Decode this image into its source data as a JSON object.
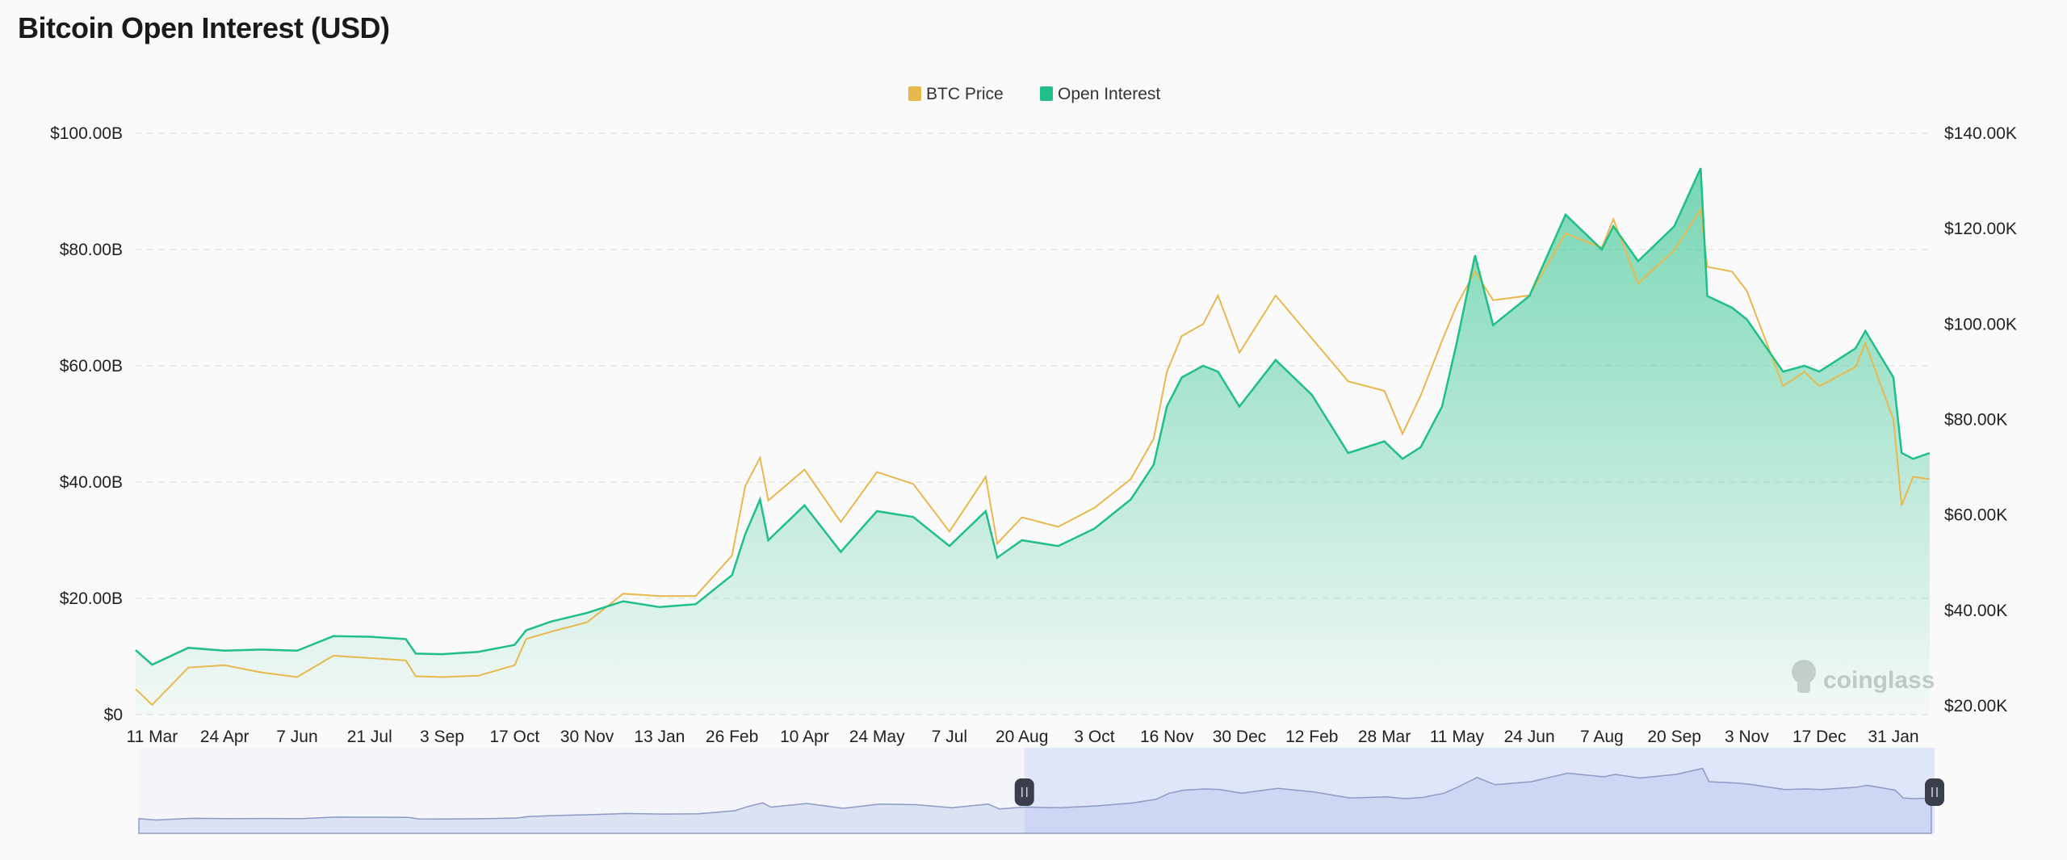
{
  "title": "Bitcoin Open Interest (USD)",
  "watermark": "coinglass",
  "chart_data": {
    "type": "line",
    "title": "Bitcoin Open Interest (USD)",
    "legend": {
      "placement": "top-center",
      "entries": [
        "BTC Price",
        "Open Interest"
      ]
    },
    "grid": true,
    "colors": {
      "btc_price": "#e8b84e",
      "open_interest": "#1fbf86"
    },
    "x_range": [
      "2023-03-01",
      "2026-02-24"
    ],
    "x_ticks": [
      {
        "date": "2023-03-11",
        "label": "11 Mar"
      },
      {
        "date": "2023-04-24",
        "label": "24 Apr"
      },
      {
        "date": "2023-06-07",
        "label": "7 Jun"
      },
      {
        "date": "2023-07-21",
        "label": "21 Jul"
      },
      {
        "date": "2023-09-03",
        "label": "3 Sep"
      },
      {
        "date": "2023-10-17",
        "label": "17 Oct"
      },
      {
        "date": "2023-11-30",
        "label": "30 Nov"
      },
      {
        "date": "2024-01-13",
        "label": "13 Jan"
      },
      {
        "date": "2024-02-26",
        "label": "26 Feb"
      },
      {
        "date": "2024-04-10",
        "label": "10 Apr"
      },
      {
        "date": "2024-05-24",
        "label": "24 May"
      },
      {
        "date": "2024-07-07",
        "label": "7 Jul"
      },
      {
        "date": "2024-08-20",
        "label": "20 Aug"
      },
      {
        "date": "2024-10-03",
        "label": "3 Oct"
      },
      {
        "date": "2024-11-16",
        "label": "16 Nov"
      },
      {
        "date": "2024-12-30",
        "label": "30 Dec"
      },
      {
        "date": "2025-02-12",
        "label": "12 Feb"
      },
      {
        "date": "2025-03-28",
        "label": "28 Mar"
      },
      {
        "date": "2025-05-11",
        "label": "11 May"
      },
      {
        "date": "2025-06-24",
        "label": "24 Jun"
      },
      {
        "date": "2025-08-07",
        "label": "7 Aug"
      },
      {
        "date": "2025-09-20",
        "label": "20 Sep"
      },
      {
        "date": "2025-11-03",
        "label": "3 Nov"
      },
      {
        "date": "2025-12-17",
        "label": "17 Dec"
      },
      {
        "date": "2026-01-31",
        "label": "31 Jan"
      }
    ],
    "y_left": {
      "label": "",
      "ylim": [
        0,
        100000000000
      ],
      "ticks": [
        "$0",
        "$20.00B",
        "$40.00B",
        "$60.00B",
        "$80.00B",
        "$100.00B"
      ]
    },
    "y_right": {
      "label": "",
      "ylim": [
        20000,
        140000
      ],
      "ticks": [
        "$20.00K",
        "$40.00K",
        "$60.00K",
        "$80.00K",
        "$100.00K",
        "$120.00K",
        "$140.00K"
      ]
    },
    "x": [
      "2023-03-01",
      "2023-03-11",
      "2023-04-02",
      "2023-04-24",
      "2023-05-16",
      "2023-06-07",
      "2023-06-29",
      "2023-07-21",
      "2023-08-12",
      "2023-08-18",
      "2023-09-03",
      "2023-09-25",
      "2023-10-17",
      "2023-10-24",
      "2023-11-08",
      "2023-11-30",
      "2023-12-22",
      "2024-01-13",
      "2024-02-04",
      "2024-02-26",
      "2024-03-05",
      "2024-03-14",
      "2024-03-19",
      "2024-04-10",
      "2024-05-02",
      "2024-05-24",
      "2024-06-15",
      "2024-07-07",
      "2024-07-29",
      "2024-08-05",
      "2024-08-20",
      "2024-09-11",
      "2024-10-03",
      "2024-10-25",
      "2024-11-08",
      "2024-11-16",
      "2024-11-25",
      "2024-12-08",
      "2024-12-17",
      "2024-12-30",
      "2025-01-21",
      "2025-02-12",
      "2025-03-06",
      "2025-03-28",
      "2025-04-08",
      "2025-04-19",
      "2025-05-02",
      "2025-05-11",
      "2025-05-22",
      "2025-06-02",
      "2025-06-24",
      "2025-07-16",
      "2025-08-07",
      "2025-08-14",
      "2025-08-29",
      "2025-09-20",
      "2025-10-06",
      "2025-10-10",
      "2025-10-25",
      "2025-11-03",
      "2025-11-25",
      "2025-12-08",
      "2025-12-17",
      "2026-01-08",
      "2026-01-14",
      "2026-01-31",
      "2026-02-05",
      "2026-02-12",
      "2026-02-22"
    ],
    "series": [
      {
        "name": "Open Interest",
        "axis": "left",
        "unit": "USD billions",
        "values": [
          11.1,
          8.6,
          11.5,
          11.0,
          11.2,
          11.0,
          13.5,
          13.4,
          13.0,
          10.5,
          10.4,
          10.8,
          12.0,
          14.5,
          16.0,
          17.5,
          19.5,
          18.5,
          19.0,
          24.0,
          31.0,
          37.0,
          30.0,
          36.0,
          28.0,
          35.0,
          34.0,
          29.0,
          35.0,
          27.0,
          30.0,
          29.0,
          32.0,
          37.0,
          43.0,
          53.0,
          58.0,
          60.0,
          59.0,
          53.0,
          61.0,
          55.0,
          45.0,
          47.0,
          44.0,
          46.0,
          53.0,
          64.0,
          79.0,
          67.0,
          72.0,
          86.0,
          80.0,
          84.0,
          78.0,
          84.0,
          94.0,
          72.0,
          70.0,
          68.0,
          59.0,
          60.0,
          59.0,
          63.0,
          66.0,
          58.0,
          45.0,
          44.0,
          45.0
        ]
      },
      {
        "name": "BTC Price",
        "axis": "right",
        "unit": "USD thousands",
        "values": [
          23.5,
          20.2,
          28.0,
          28.5,
          27.0,
          26.0,
          30.5,
          30.0,
          29.5,
          26.2,
          26.0,
          26.3,
          28.5,
          34.0,
          35.5,
          37.5,
          43.5,
          43.0,
          43.0,
          51.5,
          66.0,
          72.0,
          63.0,
          69.5,
          58.5,
          69.0,
          66.5,
          56.5,
          68.0,
          54.0,
          59.5,
          57.5,
          61.5,
          67.5,
          76.0,
          90.0,
          97.5,
          100.0,
          106.0,
          94.0,
          106.0,
          97.0,
          88.0,
          86.0,
          77.0,
          85.0,
          96.5,
          104.0,
          111.0,
          105.0,
          106.0,
          119.0,
          116.0,
          122.0,
          108.5,
          115.5,
          124.0,
          112.0,
          111.0,
          107.0,
          87.0,
          90.0,
          87.0,
          91.0,
          96.0,
          80.0,
          62.0,
          68.0,
          67.5
        ]
      }
    ],
    "navigator": {
      "selected_range": [
        "2024-08-20",
        "2026-02-24"
      ]
    }
  }
}
